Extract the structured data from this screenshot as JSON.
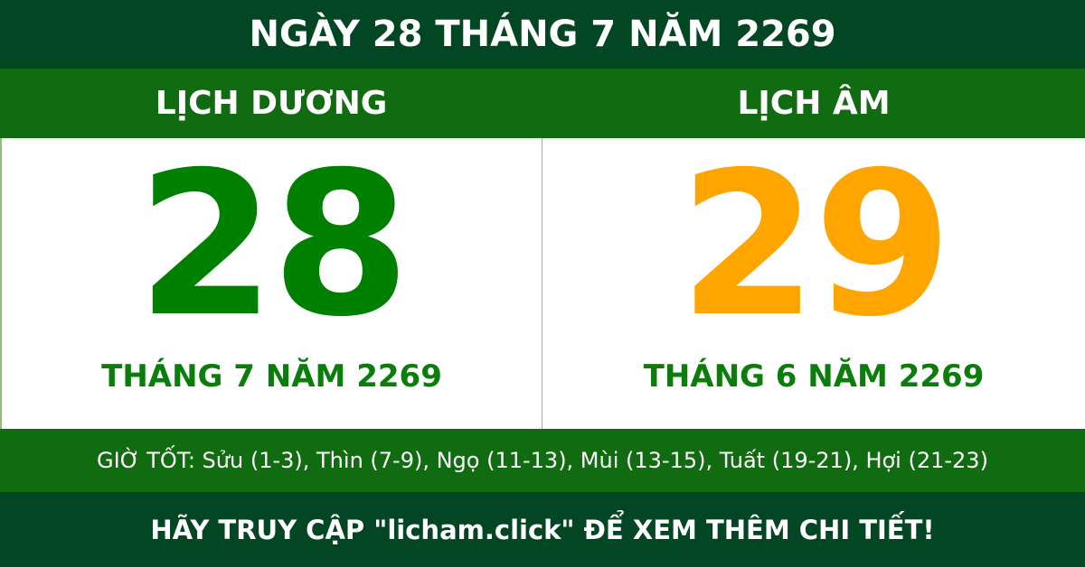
{
  "title": "NGÀY 28 THÁNG 7 NĂM 2269",
  "solar": {
    "label": "LỊCH DƯƠNG",
    "day": "28",
    "month_year": "THÁNG 7 NĂM 2269"
  },
  "lunar": {
    "label": "LỊCH ÂM",
    "day": "29",
    "month_year": "THÁNG 6 NĂM 2269"
  },
  "good_hours": "GIỜ TỐT: Sửu (1-3), Thìn (7-9), Ngọ (11-13), Mùi (13-15), Tuất (19-21), Hợi (21-23)",
  "footer": "HÃY TRUY CẬP \"licham.click\" ĐỂ XEM THÊM CHI TIẾT!",
  "colors": {
    "dark_green": "#034623",
    "green": "#116b11",
    "solar_day": "#008000",
    "lunar_day": "#ffa500"
  }
}
